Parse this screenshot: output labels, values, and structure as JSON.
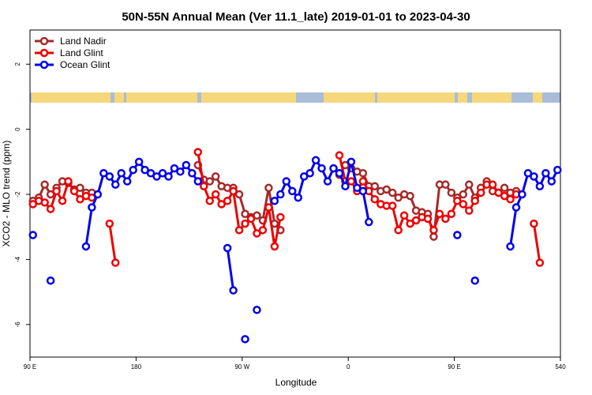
{
  "chart_data": {
    "type": "line",
    "title": "50N-55N Annual Mean (Ver 11.1_late)   2019-01-01 to 2023-04-30",
    "x_label": "Longitude",
    "y_label": "XCO2 - MLO trend (ppm)",
    "legend": "upper left",
    "xlim": [
      90,
      540
    ],
    "xticks": [
      {
        "value": 90,
        "label": "90 E"
      },
      180,
      {
        "value": 270,
        "label": "90 W"
      },
      {
        "value": 360,
        "label": "0"
      },
      {
        "value": 450,
        "label": "90 E"
      },
      540
    ],
    "ylim": [
      -7,
      3.05
    ],
    "yticks": [
      -6,
      -4,
      -2,
      0,
      2
    ],
    "x": [
      92.5,
      97.5,
      102.5,
      107.5,
      112.5,
      117.5,
      122.5,
      127.5,
      132.5,
      137.5,
      142.5,
      147.5,
      152.5,
      157.5,
      162.5,
      167.5,
      172.5,
      177.5,
      182.5,
      187.5,
      192.5,
      197.5,
      202.5,
      207.5,
      212.5,
      217.5,
      222.5,
      227.5,
      232.5,
      237.5,
      242.5,
      247.5,
      252.5,
      257.5,
      262.5,
      267.5,
      272.5,
      277.5,
      282.5,
      287.5,
      292.5,
      297.5,
      302.5,
      307.5,
      312.5,
      317.5,
      322.5,
      327.5,
      332.5,
      337.5,
      342.5,
      347.5,
      352.5,
      357.5,
      362.5,
      367.5,
      372.5,
      377.5,
      382.5,
      387.5,
      392.5,
      397.5,
      402.5,
      407.5,
      412.5,
      417.5,
      422.5,
      427.5,
      432.5,
      437.5,
      442.5,
      447.5,
      452.5,
      457.5,
      462.5,
      467.5,
      472.5,
      477.5,
      482.5,
      487.5,
      492.5,
      497.5,
      502.5,
      507.5,
      512.5,
      517.5,
      522.5,
      527.5,
      532.5,
      537.5
    ],
    "series": [
      {
        "name": "Land Nadir",
        "color": "#a52a2a",
        "values": [
          -2.2,
          -2.1,
          -1.7,
          -2.0,
          -1.8,
          -1.6,
          -1.65,
          -1.85,
          -1.8,
          -1.95,
          -1.95,
          null,
          null,
          null,
          null,
          null,
          null,
          null,
          null,
          null,
          null,
          null,
          null,
          null,
          null,
          null,
          null,
          null,
          -1.1,
          -1.55,
          -1.6,
          -1.45,
          -1.75,
          -1.8,
          -1.8,
          -2.0,
          -2.6,
          -2.7,
          -2.65,
          -2.8,
          -1.8,
          -2.9,
          -3.1,
          null,
          null,
          null,
          null,
          null,
          null,
          null,
          null,
          -1.2,
          -1.4,
          -1.1,
          -1.2,
          -1.3,
          -1.35,
          -1.75,
          -1.75,
          -1.9,
          -1.85,
          -1.95,
          -2.1,
          -2.0,
          -2.05,
          -2.5,
          -2.55,
          -2.6,
          -3.3,
          -1.7,
          -1.7,
          -1.95,
          -2.1,
          -2.0,
          -1.7,
          -2.1,
          -1.8,
          -1.6,
          -1.9,
          -1.95,
          -1.8,
          -1.95,
          -1.9,
          null,
          null,
          null,
          null,
          null,
          null,
          null
        ]
      },
      {
        "name": "Land Glint",
        "color": "#ee0000",
        "values": [
          -2.3,
          -2.2,
          -2.25,
          -2.45,
          -1.9,
          -2.2,
          -1.6,
          -1.9,
          -2.15,
          -2.05,
          -2.1,
          null,
          null,
          -2.9,
          -4.1,
          null,
          null,
          null,
          null,
          null,
          null,
          null,
          null,
          null,
          null,
          null,
          null,
          null,
          -0.7,
          -1.75,
          -2.2,
          -2.0,
          -2.3,
          -2.2,
          -1.9,
          -3.1,
          -2.9,
          -2.75,
          -3.2,
          -3.1,
          -2.4,
          -3.6,
          -2.7,
          null,
          null,
          null,
          null,
          null,
          null,
          null,
          null,
          null,
          -0.8,
          -1.6,
          -1.6,
          -1.9,
          -1.6,
          -1.9,
          -2.15,
          -2.3,
          -2.35,
          -2.35,
          -3.1,
          -2.65,
          -2.9,
          -2.8,
          -2.7,
          -2.75,
          -3.1,
          -2.6,
          -2.75,
          -2.6,
          -2.2,
          -2.3,
          -2.5,
          -2.2,
          -1.95,
          -1.7,
          -1.7,
          -1.95,
          -2.05,
          -2.15,
          -2.0,
          null,
          null,
          -2.9,
          -4.1,
          null,
          null,
          null
        ]
      },
      {
        "name": "Ocean Glint",
        "color": "#0000ee",
        "values": [
          -3.25,
          null,
          null,
          -4.65,
          null,
          null,
          null,
          null,
          null,
          -3.6,
          -2.4,
          -2.0,
          -1.35,
          -1.45,
          -1.7,
          -1.35,
          -1.6,
          -1.25,
          -1.0,
          -1.25,
          -1.35,
          -1.45,
          -1.35,
          -1.45,
          -1.2,
          -1.3,
          -1.1,
          -1.35,
          -1.6,
          null,
          null,
          null,
          null,
          -3.65,
          -4.95,
          null,
          -6.45,
          null,
          -5.55,
          null,
          null,
          -2.2,
          -2.0,
          -1.6,
          -1.9,
          -2.1,
          -1.45,
          -1.35,
          -0.95,
          -1.2,
          -1.6,
          -1.2,
          -1.35,
          -1.75,
          -1.0,
          -1.8,
          -1.9,
          -2.85,
          null,
          null,
          null,
          null,
          null,
          null,
          null,
          null,
          null,
          null,
          null,
          null,
          null,
          null,
          -3.25,
          null,
          null,
          -4.65,
          null,
          null,
          null,
          null,
          null,
          -3.6,
          -2.4,
          -2.0,
          -1.35,
          -1.45,
          -1.75,
          -1.35,
          -1.6,
          -1.25
        ]
      }
    ]
  }
}
